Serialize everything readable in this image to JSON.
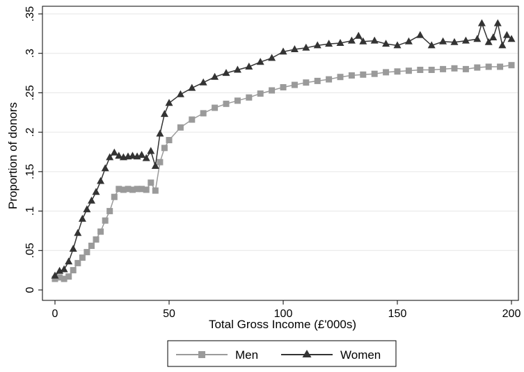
{
  "chart_data": {
    "type": "line",
    "xlabel": "Total Gross Income (£'000s)",
    "ylabel": "Proportion of donors",
    "xlim": [
      0,
      200
    ],
    "ylim": [
      0,
      0.35
    ],
    "x_ticks": [
      {
        "value": 0,
        "label": "0"
      },
      {
        "value": 50,
        "label": "50"
      },
      {
        "value": 100,
        "label": "100"
      },
      {
        "value": 150,
        "label": "150"
      },
      {
        "value": 200,
        "label": "200"
      }
    ],
    "y_ticks": [
      {
        "value": 0,
        "label": "0"
      },
      {
        "value": 0.05,
        "label": ".05"
      },
      {
        "value": 0.1,
        "label": ".1"
      },
      {
        "value": 0.15,
        "label": ".15"
      },
      {
        "value": 0.2,
        "label": ".2"
      },
      {
        "value": 0.25,
        "label": ".25"
      },
      {
        "value": 0.3,
        "label": ".3"
      },
      {
        "value": 0.35,
        "label": ".35"
      }
    ],
    "grid": "horizontal",
    "legend_position": "bottom",
    "series": [
      {
        "name": "Men",
        "color": "#9a9a9a",
        "marker": "square",
        "x": [
          0,
          2,
          4,
          6,
          8,
          10,
          12,
          14,
          16,
          18,
          20,
          22,
          24,
          26,
          28,
          30,
          32,
          34,
          36,
          38,
          40,
          42,
          44,
          46,
          48,
          50,
          55,
          60,
          65,
          70,
          75,
          80,
          85,
          90,
          95,
          100,
          105,
          110,
          115,
          120,
          125,
          130,
          135,
          140,
          145,
          150,
          155,
          160,
          165,
          170,
          175,
          180,
          185,
          190,
          195,
          200
        ],
        "values": [
          0.014,
          0.016,
          0.014,
          0.017,
          0.025,
          0.034,
          0.041,
          0.048,
          0.056,
          0.064,
          0.074,
          0.088,
          0.1,
          0.118,
          0.128,
          0.127,
          0.128,
          0.127,
          0.128,
          0.128,
          0.127,
          0.136,
          0.126,
          0.162,
          0.18,
          0.19,
          0.206,
          0.216,
          0.224,
          0.231,
          0.236,
          0.24,
          0.244,
          0.249,
          0.253,
          0.257,
          0.26,
          0.263,
          0.265,
          0.267,
          0.27,
          0.272,
          0.273,
          0.274,
          0.276,
          0.277,
          0.278,
          0.279,
          0.279,
          0.28,
          0.281,
          0.28,
          0.282,
          0.283,
          0.283,
          0.285
        ]
      },
      {
        "name": "Women",
        "color": "#333333",
        "marker": "triangle",
        "x": [
          0,
          2,
          4,
          6,
          8,
          10,
          12,
          14,
          16,
          18,
          20,
          22,
          24,
          26,
          28,
          30,
          32,
          34,
          36,
          38,
          40,
          42,
          44,
          46,
          48,
          50,
          55,
          60,
          65,
          70,
          75,
          80,
          85,
          90,
          95,
          100,
          105,
          110,
          115,
          120,
          125,
          130,
          133,
          135,
          140,
          145,
          150,
          155,
          160,
          165,
          170,
          175,
          180,
          185,
          187,
          190,
          192,
          194,
          196,
          198,
          200
        ],
        "values": [
          0.018,
          0.024,
          0.026,
          0.036,
          0.052,
          0.072,
          0.09,
          0.102,
          0.113,
          0.124,
          0.138,
          0.154,
          0.168,
          0.174,
          0.17,
          0.168,
          0.169,
          0.17,
          0.169,
          0.171,
          0.167,
          0.176,
          0.157,
          0.198,
          0.223,
          0.237,
          0.248,
          0.256,
          0.263,
          0.27,
          0.275,
          0.279,
          0.283,
          0.289,
          0.294,
          0.302,
          0.305,
          0.307,
          0.31,
          0.312,
          0.313,
          0.316,
          0.322,
          0.315,
          0.316,
          0.312,
          0.31,
          0.315,
          0.323,
          0.31,
          0.315,
          0.314,
          0.316,
          0.318,
          0.338,
          0.314,
          0.32,
          0.338,
          0.31,
          0.323,
          0.318
        ]
      }
    ]
  }
}
